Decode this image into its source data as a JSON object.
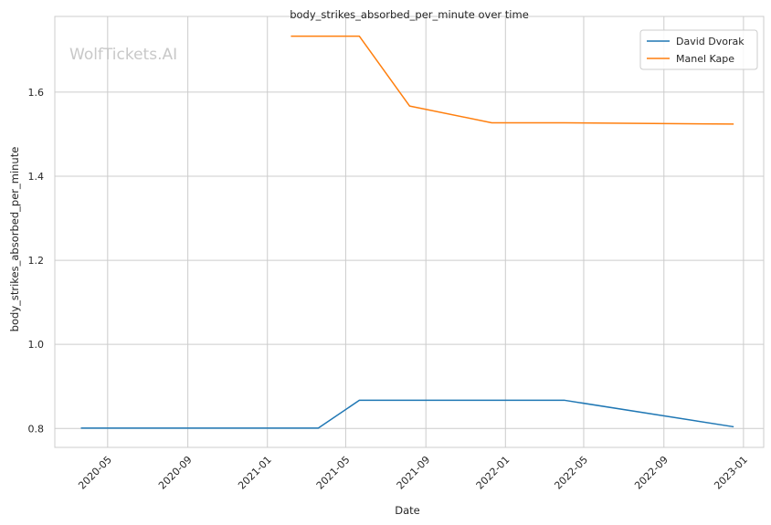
{
  "chart_data": {
    "type": "line",
    "title": "body_strikes_absorbed_per_minute over time",
    "xlabel": "Date",
    "ylabel": "body_strikes_absorbed_per_minute",
    "watermark": "WolfTickets.AI",
    "x_ticks": [
      "2020-05",
      "2020-09",
      "2021-01",
      "2021-05",
      "2021-09",
      "2022-01",
      "2022-05",
      "2022-09",
      "2023-01"
    ],
    "y_ticks": [
      "0.8",
      "1.0",
      "1.2",
      "1.4",
      "1.6"
    ],
    "ylim": [
      0.755,
      1.78
    ],
    "xlim": [
      "2020-02-10",
      "2023-02-01"
    ],
    "grid": true,
    "legend_position": "top-right",
    "series": [
      {
        "name": "David Dvorak",
        "color": "#1f77b4",
        "points": [
          {
            "x": "2020-03-21",
            "y": 0.801
          },
          {
            "x": "2021-03-20",
            "y": 0.801
          },
          {
            "x": "2021-05-22",
            "y": 0.867
          },
          {
            "x": "2022-04-02",
            "y": 0.867
          },
          {
            "x": "2022-12-17",
            "y": 0.804
          }
        ]
      },
      {
        "name": "Manel Kape",
        "color": "#ff7f0e",
        "points": [
          {
            "x": "2021-02-06",
            "y": 1.733
          },
          {
            "x": "2021-05-22",
            "y": 1.733
          },
          {
            "x": "2021-08-07",
            "y": 1.567
          },
          {
            "x": "2021-12-11",
            "y": 1.527
          },
          {
            "x": "2022-04-02",
            "y": 1.527
          },
          {
            "x": "2022-12-17",
            "y": 1.524
          }
        ]
      }
    ]
  }
}
